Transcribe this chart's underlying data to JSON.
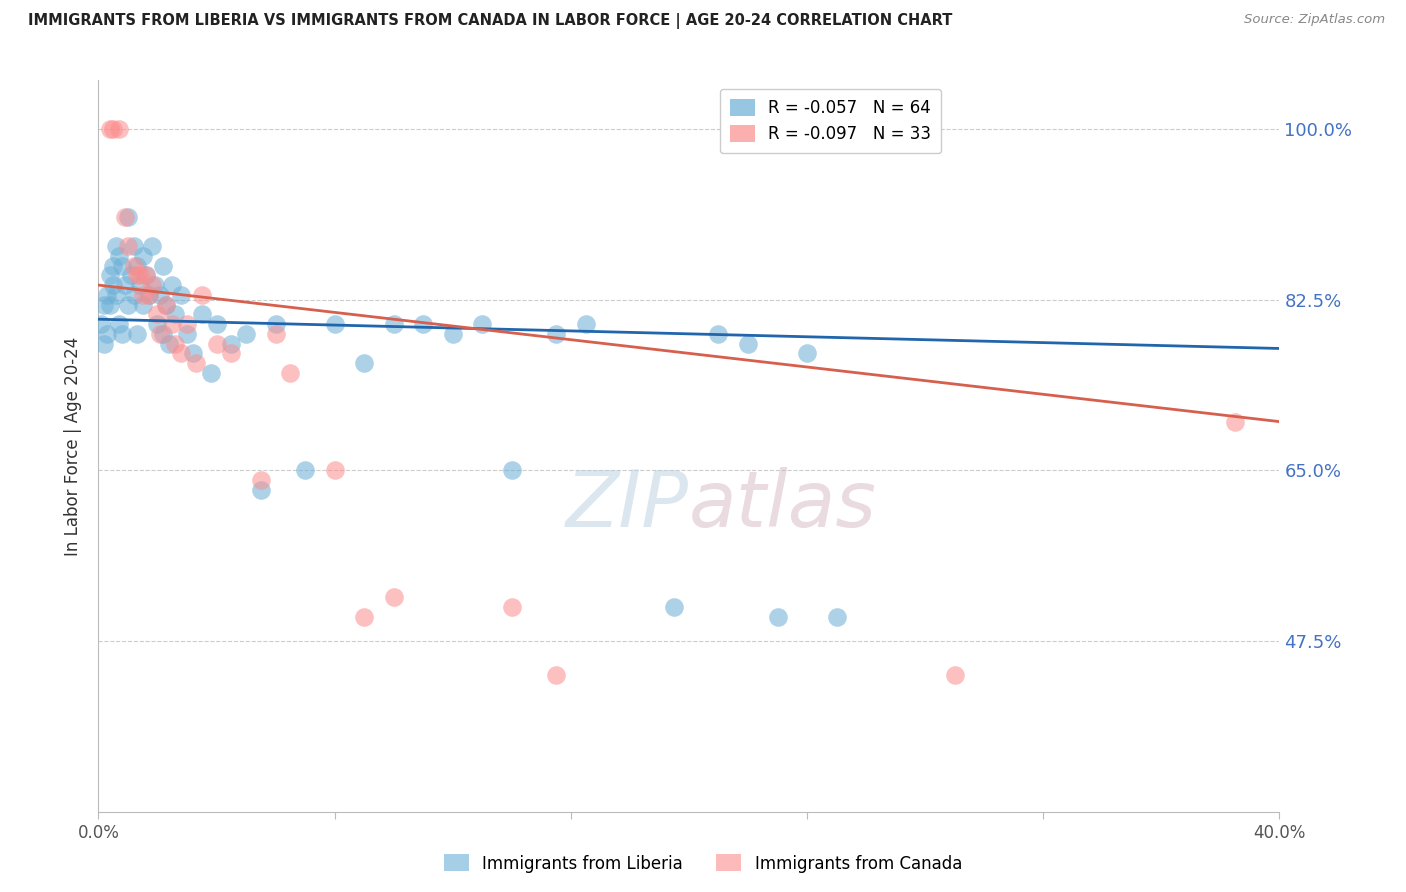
{
  "title": "IMMIGRANTS FROM LIBERIA VS IMMIGRANTS FROM CANADA IN LABOR FORCE | AGE 20-24 CORRELATION CHART",
  "source": "Source: ZipAtlas.com",
  "ylabel": "In Labor Force | Age 20-24",
  "xlim": [
    0.0,
    0.4
  ],
  "ylim": [
    0.3,
    1.05
  ],
  "yticks": [
    0.475,
    0.65,
    0.825,
    1.0
  ],
  "ytick_labels": [
    "47.5%",
    "65.0%",
    "82.5%",
    "100.0%"
  ],
  "xticks": [
    0.0,
    0.08,
    0.16,
    0.24,
    0.32,
    0.4
  ],
  "xtick_labels": [
    "0.0%",
    "",
    "",
    "",
    "",
    "40.0%"
  ],
  "legend_liberia_r": "-0.057",
  "legend_liberia_n": "64",
  "legend_canada_r": "-0.097",
  "legend_canada_n": "33",
  "liberia_color": "#6baed6",
  "canada_color": "#fc8d8d",
  "trend_liberia_color": "#2166ac",
  "trend_canada_color": "#d6604d",
  "watermark_zip": "ZIP",
  "watermark_atlas": "atlas",
  "liberia_x": [
    0.001,
    0.002,
    0.002,
    0.003,
    0.003,
    0.004,
    0.004,
    0.005,
    0.005,
    0.006,
    0.006,
    0.007,
    0.007,
    0.008,
    0.008,
    0.009,
    0.01,
    0.01,
    0.011,
    0.012,
    0.012,
    0.013,
    0.013,
    0.014,
    0.015,
    0.015,
    0.016,
    0.017,
    0.018,
    0.019,
    0.02,
    0.021,
    0.022,
    0.022,
    0.023,
    0.024,
    0.025,
    0.026,
    0.028,
    0.03,
    0.032,
    0.035,
    0.038,
    0.04,
    0.045,
    0.05,
    0.055,
    0.06,
    0.07,
    0.08,
    0.09,
    0.1,
    0.11,
    0.12,
    0.13,
    0.14,
    0.155,
    0.165,
    0.195,
    0.21,
    0.22,
    0.23,
    0.24,
    0.25
  ],
  "liberia_y": [
    0.8,
    0.82,
    0.78,
    0.83,
    0.79,
    0.85,
    0.82,
    0.86,
    0.84,
    0.88,
    0.83,
    0.87,
    0.8,
    0.86,
    0.79,
    0.84,
    0.91,
    0.82,
    0.85,
    0.88,
    0.83,
    0.86,
    0.79,
    0.84,
    0.87,
    0.82,
    0.85,
    0.83,
    0.88,
    0.84,
    0.8,
    0.83,
    0.79,
    0.86,
    0.82,
    0.78,
    0.84,
    0.81,
    0.83,
    0.79,
    0.77,
    0.81,
    0.75,
    0.8,
    0.78,
    0.79,
    0.63,
    0.8,
    0.65,
    0.8,
    0.76,
    0.8,
    0.8,
    0.79,
    0.8,
    0.65,
    0.79,
    0.8,
    0.51,
    0.79,
    0.78,
    0.5,
    0.77,
    0.5
  ],
  "canada_x": [
    0.004,
    0.005,
    0.007,
    0.009,
    0.01,
    0.012,
    0.013,
    0.014,
    0.015,
    0.016,
    0.017,
    0.018,
    0.02,
    0.021,
    0.023,
    0.025,
    0.026,
    0.028,
    0.03,
    0.033,
    0.035,
    0.04,
    0.045,
    0.055,
    0.06,
    0.065,
    0.08,
    0.09,
    0.1,
    0.14,
    0.155,
    0.29,
    0.385
  ],
  "canada_y": [
    1.0,
    1.0,
    1.0,
    0.91,
    0.88,
    0.86,
    0.85,
    0.85,
    0.83,
    0.85,
    0.83,
    0.84,
    0.81,
    0.79,
    0.82,
    0.8,
    0.78,
    0.77,
    0.8,
    0.76,
    0.83,
    0.78,
    0.77,
    0.64,
    0.79,
    0.75,
    0.65,
    0.5,
    0.52,
    0.51,
    0.44,
    0.44,
    0.7
  ],
  "trend_liberia_x0": 0.0,
  "trend_liberia_y0": 0.805,
  "trend_liberia_x1": 0.4,
  "trend_liberia_y1": 0.775,
  "trend_canada_x0": 0.0,
  "trend_canada_y0": 0.84,
  "trend_canada_x1": 0.4,
  "trend_canada_y1": 0.7
}
